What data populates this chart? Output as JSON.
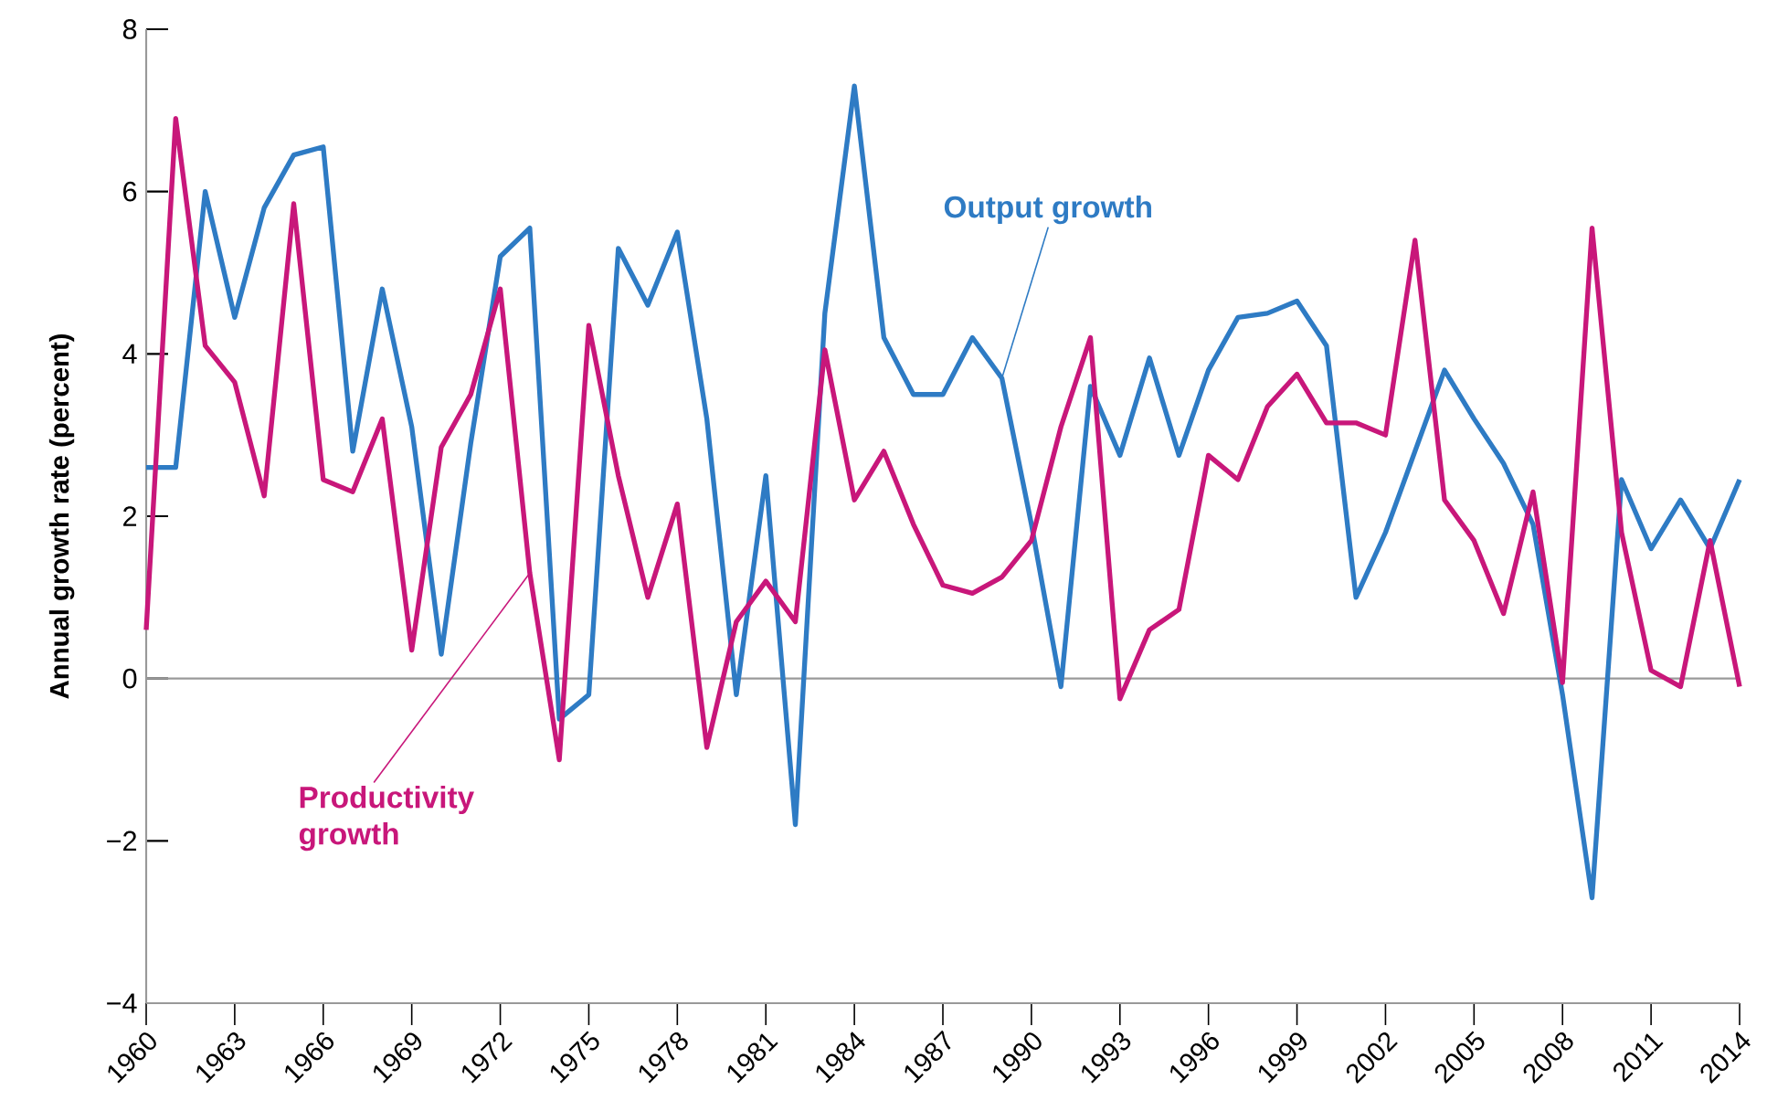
{
  "chart_data": {
    "type": "line",
    "ylabel": "Annual growth rate (percent)",
    "x": [
      1960,
      1961,
      1962,
      1963,
      1964,
      1965,
      1966,
      1967,
      1968,
      1969,
      1970,
      1971,
      1972,
      1973,
      1974,
      1975,
      1976,
      1977,
      1978,
      1979,
      1980,
      1981,
      1982,
      1983,
      1984,
      1985,
      1986,
      1987,
      1988,
      1989,
      1990,
      1991,
      1992,
      1993,
      1994,
      1995,
      1996,
      1997,
      1998,
      1999,
      2000,
      2001,
      2002,
      2003,
      2004,
      2005,
      2006,
      2007,
      2008,
      2009,
      2010,
      2011,
      2012,
      2013,
      2014
    ],
    "series": [
      {
        "color": "#2e7bc4",
        "values": [
          2.6,
          2.6,
          6.0,
          4.45,
          5.8,
          6.45,
          6.55,
          2.8,
          4.8,
          3.1,
          0.3,
          2.9,
          5.2,
          5.55,
          -0.5,
          -0.2,
          5.3,
          4.6,
          5.5,
          3.2,
          -0.2,
          2.5,
          -1.8,
          4.5,
          7.3,
          4.2,
          3.5,
          3.5,
          4.2,
          3.7,
          1.9,
          -0.1,
          3.6,
          2.75,
          3.95,
          2.75,
          3.8,
          4.45,
          4.5,
          4.65,
          4.1,
          1.0,
          1.8,
          2.8,
          3.8,
          3.2,
          2.65,
          1.9,
          -0.2,
          -2.7,
          2.45,
          1.6,
          2.2,
          1.6,
          2.45
        ]
      },
      {
        "color": "#c8177a",
        "values": [
          0.6,
          6.9,
          4.1,
          3.65,
          2.25,
          5.85,
          2.45,
          2.3,
          3.2,
          0.35,
          2.85,
          3.5,
          4.8,
          1.3,
          -1.0,
          4.35,
          2.5,
          1.0,
          2.15,
          -0.85,
          0.7,
          1.2,
          0.7,
          4.05,
          2.2,
          2.8,
          1.9,
          1.15,
          1.05,
          1.25,
          1.7,
          3.1,
          4.2,
          -0.25,
          0.6,
          0.85,
          2.75,
          2.45,
          3.35,
          3.75,
          3.15,
          3.15,
          3.0,
          5.4,
          2.2,
          1.7,
          0.8,
          2.3,
          -0.05,
          5.55,
          1.8,
          0.1,
          -0.1,
          1.7,
          -0.1
        ]
      }
    ],
    "annotations": [
      {
        "text": "Output growth",
        "x": 1989,
        "y": 3.7
      },
      {
        "text": "Productivity growth",
        "x": 1973,
        "y": 1.3
      }
    ],
    "xlim": [
      1960,
      2014
    ],
    "xticks": [
      1960,
      1963,
      1966,
      1969,
      1972,
      1975,
      1978,
      1981,
      1984,
      1987,
      1990,
      1993,
      1996,
      1999,
      2002,
      2005,
      2008,
      2011,
      2014
    ],
    "ylim": [
      -4,
      8
    ],
    "yticks": [
      {
        "value": -4,
        "label": "−4"
      },
      {
        "value": -2,
        "label": "−2"
      },
      0,
      2,
      4,
      6,
      8
    ],
    "ref_lines": [
      {
        "axis": "y",
        "value": 0,
        "color": "#9a9a9a"
      }
    ],
    "grid": false,
    "marker": "none",
    "line_style": "solid"
  }
}
